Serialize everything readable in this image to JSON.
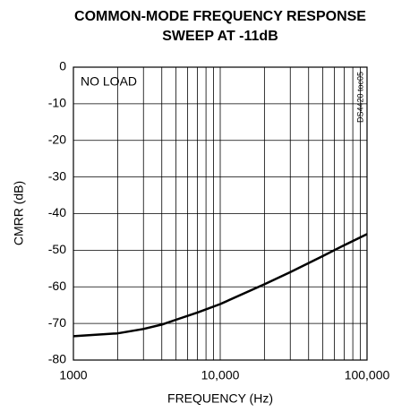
{
  "chart_data": {
    "type": "line",
    "title": [
      "COMMON-MODE FREQUENCY RESPONSE",
      "SWEEP AT -11dB"
    ],
    "x_label": "FREQUENCY (Hz)",
    "y_label": "CMRR (dB)",
    "annotations": [
      "NO LOAD",
      "DS4420 toc05"
    ],
    "x_log": true,
    "x": [
      1000,
      2000,
      3000,
      4000,
      5000,
      7000,
      10000,
      20000,
      30000,
      50000,
      70000,
      100000
    ],
    "series": [
      {
        "name": "CMRR",
        "color": "#000000",
        "values": [
          -73.5,
          -72.7,
          -71.5,
          -70.3,
          -69,
          -67,
          -64.7,
          -59.3,
          -56,
          -51.6,
          -48.6,
          -45.6
        ]
      }
    ],
    "xlim": [
      1000,
      100000
    ],
    "xticks": [
      1000,
      {
        "value": 10000,
        "label": "10,000"
      },
      {
        "value": 100000,
        "label": "100,000"
      }
    ],
    "x_minor_grid": [
      2000,
      3000,
      4000,
      5000,
      6000,
      7000,
      8000,
      9000,
      20000,
      30000,
      40000,
      50000,
      60000,
      70000,
      80000,
      90000
    ],
    "ylim": [
      -80,
      0
    ],
    "yticks": [
      0,
      -10,
      -20,
      -30,
      -40,
      -50,
      -60,
      -70,
      -80
    ],
    "grid": true
  }
}
